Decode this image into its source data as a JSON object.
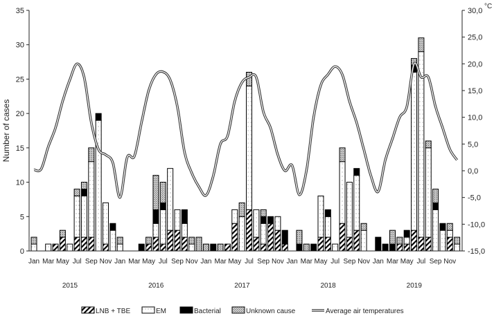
{
  "chart_data": {
    "type": "bar",
    "subtype": "stacked bar with line overlay",
    "ylabel": "Number of cases",
    "y2label": "°C",
    "ylim": [
      0,
      35
    ],
    "y2lim": [
      -15,
      30
    ],
    "yticks": [
      "0",
      "5",
      "10",
      "15",
      "20",
      "25",
      "30",
      "35"
    ],
    "y2ticks": [
      "-15,0",
      "-10,0",
      "-5,0",
      "0,0",
      "5,0",
      "10,0",
      "15,0",
      "20,0",
      "25,0",
      "30,0"
    ],
    "month_labels": [
      "Jan",
      "Mar",
      "May",
      "Jul",
      "Sep",
      "Nov"
    ],
    "years": [
      "2015",
      "2016",
      "2017",
      "2018",
      "2019"
    ],
    "legend": [
      "LNB + TBE",
      "EM",
      "Bacterial",
      "Unknown cause",
      "Average air temperatures"
    ],
    "legend_placement": "bottom",
    "series": [
      {
        "name": "LNB + TBE",
        "values": [
          0,
          0,
          0,
          1,
          2,
          0,
          2,
          2,
          2,
          0,
          1,
          0,
          0,
          0,
          0,
          0,
          1,
          2,
          1,
          3,
          3,
          2,
          0,
          0,
          0,
          0,
          0,
          1,
          4,
          0,
          6,
          2,
          1,
          4,
          3,
          1,
          0,
          0,
          0,
          0,
          2,
          2,
          0,
          4,
          2,
          3,
          0,
          0,
          0,
          0,
          0,
          1,
          1,
          3,
          2,
          2,
          0,
          0,
          2,
          0
        ]
      },
      {
        "name": "EM",
        "values": [
          1,
          0,
          1,
          0,
          0,
          1,
          6,
          6,
          11,
          19,
          6,
          3,
          1,
          0,
          0,
          0,
          0,
          2,
          5,
          9,
          3,
          2,
          1,
          0,
          0,
          0,
          0,
          0,
          2,
          5,
          18,
          4,
          3,
          0,
          2,
          0,
          0,
          0,
          0,
          0,
          6,
          3,
          1,
          9,
          8,
          8,
          3,
          0,
          0,
          0,
          0,
          0,
          1,
          23,
          27,
          13,
          6,
          3,
          1,
          1
        ]
      },
      {
        "name": "Bacterial",
        "values": [
          0,
          0,
          0,
          0,
          0,
          0,
          0,
          1,
          0,
          1,
          0,
          1,
          0,
          0,
          0,
          1,
          0,
          2,
          1,
          0,
          0,
          2,
          0,
          0,
          0,
          1,
          0,
          0,
          0,
          0,
          0,
          0,
          1,
          1,
          0,
          2,
          0,
          1,
          0,
          1,
          0,
          1,
          0,
          0,
          0,
          1,
          0,
          0,
          2,
          1,
          1,
          0,
          1,
          1,
          0,
          0,
          1,
          1,
          0,
          0
        ]
      },
      {
        "name": "Unknown cause",
        "values": [
          1,
          0,
          0,
          0,
          1,
          0,
          1,
          1,
          2,
          0,
          0,
          0,
          1,
          0,
          0,
          0,
          1,
          5,
          3,
          0,
          0,
          0,
          1,
          2,
          1,
          0,
          1,
          0,
          0,
          2,
          2,
          0,
          1,
          0,
          0,
          0,
          0,
          2,
          1,
          0,
          0,
          0,
          0,
          2,
          0,
          0,
          1,
          0,
          0,
          0,
          2,
          1,
          0,
          1,
          2,
          1,
          2,
          0,
          1,
          1
        ]
      },
      {
        "name": "Average air temperatures",
        "axis": "right",
        "type": "line",
        "values": [
          0.2,
          0.3,
          4.5,
          8,
          13,
          17,
          20,
          17.5,
          9,
          4,
          3,
          1.5,
          -5,
          2.5,
          2.7,
          9,
          15,
          18,
          18.5,
          17,
          12,
          3.5,
          -0.4,
          -3,
          -4.6,
          -1,
          5,
          6.5,
          13,
          16.5,
          17.5,
          17.5,
          11,
          8,
          3,
          0,
          1,
          -4.5,
          0,
          10,
          16,
          18,
          19.5,
          18,
          13,
          9,
          4,
          -1,
          -3.9,
          2,
          6,
          10,
          12,
          20,
          17.5,
          17.5,
          12,
          8,
          4,
          2
        ]
      }
    ],
    "colors": {
      "axis": "#222222",
      "em_fill": "#ffffff",
      "bacterial": "#000000",
      "unknown": "#b0b0b0"
    }
  }
}
